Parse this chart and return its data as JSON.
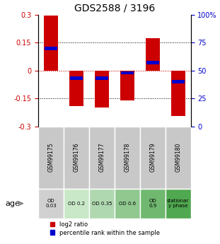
{
  "title": "GDS2588 / 3196",
  "samples": [
    "GSM99175",
    "GSM99176",
    "GSM99177",
    "GSM99178",
    "GSM99179",
    "GSM99180"
  ],
  "log2_ratios": [
    0.295,
    -0.19,
    -0.2,
    -0.16,
    0.175,
    -0.245
  ],
  "percentile_ranks": [
    70,
    43,
    43,
    48,
    57,
    40
  ],
  "ylim_left": [
    -0.3,
    0.3
  ],
  "ylim_right": [
    0,
    100
  ],
  "yticks_left": [
    -0.3,
    -0.15,
    0,
    0.15,
    0.3
  ],
  "yticks_left_labels": [
    "-0.3",
    "-0.15",
    "0",
    "0.15",
    "0.3"
  ],
  "yticks_right": [
    0,
    25,
    50,
    75,
    100
  ],
  "yticks_right_labels": [
    "0",
    "25",
    "50",
    "75",
    "100%"
  ],
  "bar_color": "#cc0000",
  "blue_color": "#0000cc",
  "age_labels": [
    "OD\n0.03",
    "OD 0.2",
    "OD 0.35",
    "OD 0.6",
    "OD\n0.9",
    "stationar\ny phase"
  ],
  "age_bg_colors": [
    "#d0d0d0",
    "#c8e8c8",
    "#b0d8b0",
    "#90c890",
    "#70b870",
    "#50a850"
  ],
  "sample_bg_color": "#c8c8c8",
  "legend_log2": "log2 ratio",
  "legend_pct": "percentile rank within the sample"
}
